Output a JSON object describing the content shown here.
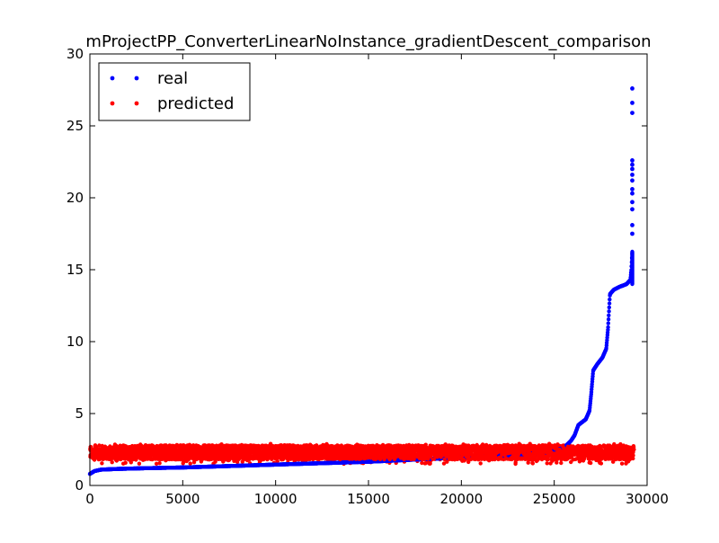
{
  "chart_data": {
    "type": "scatter",
    "title": "mProjectPP_ConverterLinearNoInstance_gradientDescent_comparison",
    "xlabel": "",
    "ylabel": "",
    "xlim": [
      0,
      30000
    ],
    "ylim": [
      0,
      30
    ],
    "xticks": [
      0,
      5000,
      10000,
      15000,
      20000,
      25000,
      30000
    ],
    "yticks": [
      0,
      5,
      10,
      15,
      20,
      25,
      30
    ],
    "grid": false,
    "legend_position": "top-left",
    "series": [
      {
        "name": "real",
        "color": "#0000ff",
        "marker": "dot",
        "description_points": [
          [
            0,
            0.8
          ],
          [
            250,
            1.0
          ],
          [
            600,
            1.1
          ],
          [
            1500,
            1.15
          ],
          [
            3000,
            1.2
          ],
          [
            5000,
            1.25
          ],
          [
            7500,
            1.35
          ],
          [
            10000,
            1.45
          ],
          [
            12500,
            1.55
          ],
          [
            15000,
            1.65
          ],
          [
            17500,
            1.8
          ],
          [
            20000,
            1.95
          ],
          [
            22500,
            2.1
          ],
          [
            24500,
            2.3
          ],
          [
            25500,
            2.6
          ],
          [
            25900,
            3.1
          ],
          [
            26100,
            3.5
          ],
          [
            26300,
            4.2
          ],
          [
            26700,
            4.6
          ],
          [
            26900,
            5.2
          ],
          [
            27000,
            6.5
          ],
          [
            27100,
            8.0
          ],
          [
            27300,
            8.4
          ],
          [
            27600,
            8.9
          ],
          [
            27800,
            9.5
          ],
          [
            27900,
            11.0
          ],
          [
            28000,
            13.3
          ],
          [
            28200,
            13.6
          ],
          [
            28500,
            13.8
          ],
          [
            28900,
            14.0
          ],
          [
            29100,
            14.3
          ],
          [
            29150,
            15.0
          ],
          [
            29200,
            16.2
          ]
        ],
        "outliers": [
          [
            29200,
            17.5
          ],
          [
            29200,
            18.1
          ],
          [
            29200,
            19.2
          ],
          [
            29200,
            19.7
          ],
          [
            29200,
            20.3
          ],
          [
            29200,
            20.6
          ],
          [
            29200,
            21.2
          ],
          [
            29200,
            21.6
          ],
          [
            29200,
            22.0
          ],
          [
            29200,
            22.3
          ],
          [
            29200,
            22.6
          ],
          [
            29200,
            25.9
          ],
          [
            29200,
            26.6
          ],
          [
            29200,
            27.6
          ]
        ]
      },
      {
        "name": "predicted",
        "color": "#ff0000",
        "marker": "dot",
        "band_x": [
          0,
          29300
        ],
        "band_y_low": 1.5,
        "band_y_high": 2.9,
        "band_dense_low": 1.8,
        "band_dense_high": 2.8
      }
    ]
  }
}
